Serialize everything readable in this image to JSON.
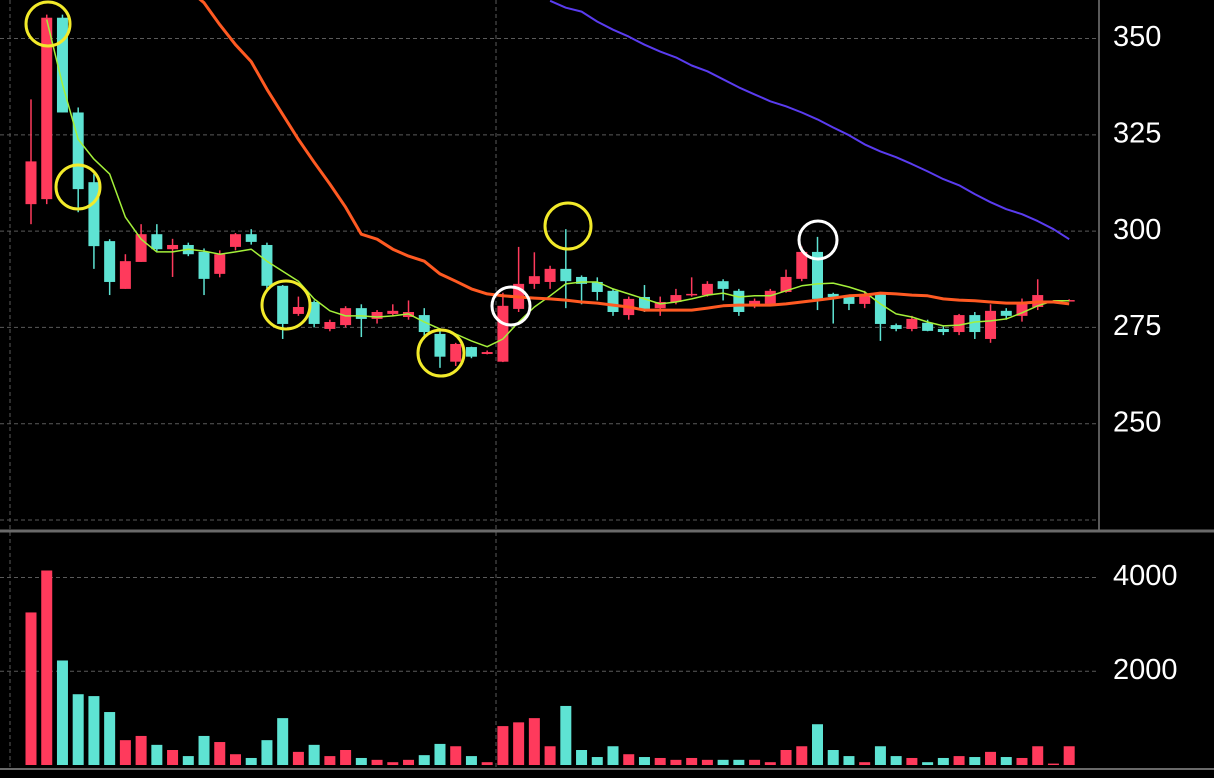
{
  "chart_data": {
    "type": "candlestick",
    "up_color": "#ff3a5c",
    "down_color": "#5ee3d3",
    "open": [
      307.0,
      308.3,
      355.4,
      330.8,
      312.7,
      297.4,
      285.0,
      292.0,
      299.2,
      295.3,
      296.4,
      294.6,
      288.9,
      295.9,
      299.2,
      296.4,
      285.8,
      278.5,
      281.6,
      274.6,
      275.6,
      280.0,
      277.2,
      278.5,
      277.7,
      278.2,
      273.3,
      266.1,
      269.9,
      268.1,
      266.1,
      279.8,
      286.3,
      286.8,
      290.2,
      288.1,
      286.8,
      284.5,
      278.2,
      282.9,
      280.0,
      281.6,
      283.4,
      283.4,
      287.0,
      284.5,
      280.6,
      281.1,
      284.2,
      287.6,
      294.6,
      283.7,
      282.9,
      281.1,
      283.7,
      275.6,
      274.6,
      276.2,
      274.6,
      273.8,
      278.2,
      272.0,
      279.3,
      278.0,
      280.3,
      281.7,
      281.9
    ],
    "high": [
      334.2,
      356.2,
      356.2,
      332.1,
      314.8,
      297.9,
      294.0,
      301.8,
      301.8,
      298.0,
      297.0,
      295.5,
      295.0,
      299.5,
      300.5,
      297.0,
      286.0,
      283.0,
      282.0,
      277.0,
      280.5,
      281.0,
      279.5,
      281.0,
      282.0,
      280.0,
      274.0,
      271.0,
      270.0,
      269.0,
      284.0,
      295.9,
      294.5,
      291.0,
      300.5,
      288.5,
      288.0,
      285.0,
      283.0,
      286.0,
      283.0,
      285.0,
      288.0,
      287.0,
      287.5,
      285.0,
      282.5,
      285.0,
      290.0,
      296.0,
      298.5,
      284.0,
      283.5,
      284.5,
      284.0,
      276.0,
      278.0,
      277.0,
      275.5,
      278.5,
      279.0,
      281.0,
      280.0,
      282.5,
      287.5,
      281.7,
      282.3
    ],
    "low": [
      301.8,
      307.0,
      330.8,
      304.9,
      290.2,
      283.4,
      285.0,
      292.0,
      294.8,
      288.1,
      293.5,
      283.4,
      288.0,
      295.0,
      296.5,
      285.0,
      272.0,
      278.0,
      275.0,
      274.0,
      275.0,
      272.5,
      276.0,
      278.0,
      277.0,
      272.0,
      264.5,
      265.0,
      267.0,
      268.0,
      266.0,
      279.0,
      285.0,
      285.0,
      280.0,
      281.0,
      282.0,
      278.0,
      277.0,
      279.0,
      278.0,
      281.0,
      283.0,
      283.0,
      282.0,
      278.0,
      280.0,
      280.5,
      284.0,
      287.0,
      279.5,
      276.0,
      279.5,
      280.0,
      271.5,
      274.0,
      274.0,
      274.0,
      273.0,
      273.0,
      272.0,
      271.0,
      277.0,
      276.5,
      279.5,
      281.7,
      281.7
    ],
    "close": [
      318.1,
      355.4,
      330.8,
      310.9,
      296.1,
      286.8,
      292.2,
      299.2,
      295.3,
      296.4,
      294.0,
      287.6,
      294.0,
      299.2,
      297.2,
      285.8,
      275.9,
      280.3,
      275.9,
      276.4,
      280.0,
      277.2,
      279.0,
      279.3,
      279.0,
      273.8,
      267.4,
      270.7,
      267.4,
      268.6,
      280.6,
      286.3,
      288.3,
      290.2,
      287.0,
      286.3,
      284.2,
      279.0,
      282.4,
      279.8,
      281.6,
      283.4,
      283.7,
      286.3,
      285.0,
      279.0,
      281.9,
      284.5,
      288.1,
      294.6,
      282.4,
      282.9,
      281.1,
      283.7,
      275.9,
      274.6,
      277.2,
      274.1,
      273.8,
      278.2,
      273.8,
      279.3,
      278.0,
      281.1,
      283.4,
      281.7,
      282.1
    ],
    "volume": [
      3255,
      4150,
      2230,
      1510,
      1470,
      1130,
      530,
      620,
      430,
      320,
      190,
      620,
      490,
      230,
      150,
      530,
      1000,
      280,
      430,
      190,
      320,
      150,
      110,
      60,
      110,
      210,
      450,
      400,
      190,
      60,
      830,
      910,
      1000,
      400,
      1260,
      320,
      170,
      400,
      230,
      170,
      150,
      110,
      150,
      110,
      110,
      110,
      110,
      60,
      320,
      400,
      870,
      320,
      190,
      60,
      400,
      190,
      150,
      60,
      150,
      190,
      170,
      280,
      170,
      150,
      400,
      30,
      400
    ],
    "series": [
      {
        "color": "#a4f03a",
        "width": 1.5,
        "values": [
          null,
          354.9,
          338.1,
          323.8,
          318.7,
          314.8,
          303.6,
          297.9,
          294.6,
          294.6,
          295.3,
          294.8,
          294.0,
          294.6,
          295.3,
          292.2,
          289.6,
          287.0,
          282.4,
          279.3,
          278.0,
          278.0,
          277.7,
          278.0,
          278.5,
          276.4,
          274.6,
          273.3,
          271.5,
          270.0,
          272.0,
          276.4,
          280.3,
          283.2,
          286.3,
          286.8,
          286.8,
          285.0,
          283.7,
          282.4,
          281.1,
          281.6,
          282.4,
          283.4,
          283.9,
          282.9,
          283.2,
          283.2,
          284.5,
          285.8,
          286.3,
          286.5,
          285.5,
          284.2,
          281.1,
          278.5,
          277.7,
          276.4,
          275.4,
          275.6,
          276.4,
          276.7,
          277.2,
          278.8,
          280.6,
          281.9,
          281.9
        ]
      },
      {
        "color": "#ff5a22",
        "width": 3,
        "values": [
          null,
          null,
          null,
          null,
          null,
          null,
          null,
          null,
          null,
          null,
          362.7,
          359.3,
          353.6,
          348.4,
          344.0,
          336.8,
          330.3,
          323.8,
          317.9,
          312.2,
          306.2,
          299.2,
          297.9,
          295.3,
          293.5,
          292.2,
          288.9,
          287.0,
          285.0,
          283.7,
          283.2,
          282.9,
          282.6,
          282.4,
          282.1,
          281.6,
          281.3,
          280.8,
          280.3,
          279.5,
          279.5,
          279.5,
          279.5,
          280.0,
          280.6,
          280.8,
          280.8,
          280.8,
          281.1,
          281.6,
          282.1,
          282.6,
          283.2,
          283.4,
          283.9,
          283.7,
          283.4,
          283.2,
          282.4,
          282.1,
          281.9,
          281.6,
          281.3,
          281.3,
          281.6,
          281.6,
          281.1
        ]
      },
      {
        "color": "#5a3cf0",
        "width": 2,
        "values": [
          null,
          null,
          null,
          null,
          null,
          null,
          null,
          null,
          null,
          null,
          null,
          null,
          null,
          null,
          null,
          null,
          null,
          null,
          null,
          null,
          null,
          null,
          null,
          null,
          null,
          null,
          null,
          null,
          null,
          null,
          null,
          null,
          null,
          359.8,
          358.0,
          357.0,
          354.4,
          352.3,
          350.5,
          348.4,
          346.6,
          345.1,
          343.0,
          341.5,
          339.4,
          337.3,
          335.5,
          333.7,
          332.4,
          330.8,
          329.0,
          326.9,
          324.9,
          322.5,
          320.7,
          319.2,
          317.4,
          315.5,
          313.5,
          311.9,
          309.6,
          307.5,
          305.7,
          304.4,
          302.6,
          300.5,
          297.9
        ]
      }
    ],
    "ylim": [
      225,
      360
    ],
    "yticks": [
      250,
      275,
      300,
      325,
      350
    ],
    "volume_ylim": [
      0,
      4950
    ],
    "volume_ticks": [
      2000,
      4000
    ],
    "grid": true
  }
}
